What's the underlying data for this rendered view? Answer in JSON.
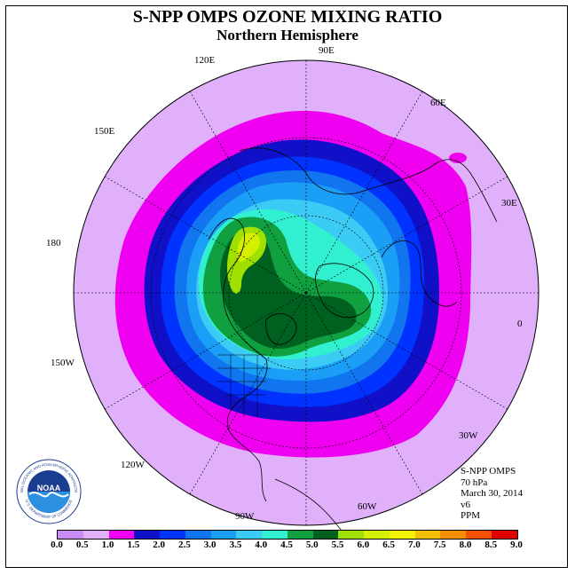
{
  "title": "S-NPP OMPS OZONE MIXING RATIO",
  "subtitle": "Northern Hemisphere",
  "longitude_labels": {
    "lon_90e": "90E",
    "lon_60e": "60E",
    "lon_30e": "30E",
    "lon_0": "0",
    "lon_30w": "30W",
    "lon_60w": "60W",
    "lon_90w": "90W",
    "lon_120w": "120W",
    "lon_150w": "150W",
    "lon_180": "180",
    "lon_150e": "150E",
    "lon_120e": "120E"
  },
  "info": {
    "instrument": "S-NPP OMPS",
    "level": "70 hPa",
    "date": "March 30, 2014",
    "version": "v6",
    "units": "PPM"
  },
  "colorbar": {
    "labels": [
      "0.0",
      "0.5",
      "1.0",
      "1.5",
      "2.0",
      "2.5",
      "3.0",
      "3.5",
      "4.0",
      "4.5",
      "5.0",
      "5.5",
      "6.0",
      "6.5",
      "7.0",
      "7.5",
      "8.0",
      "8.5",
      "9.0"
    ],
    "colors": [
      "#c98cf5",
      "#e0b0fb",
      "#f000f0",
      "#1010c8",
      "#0033ff",
      "#1175f0",
      "#1b9ef6",
      "#3ccbf5",
      "#30f0d0",
      "#10a040",
      "#006020",
      "#a0e000",
      "#d4f000",
      "#f4f400",
      "#f4c000",
      "#f49000",
      "#f45000",
      "#e00000",
      "#8b5a3c"
    ]
  },
  "logo": {
    "text": "NOAA",
    "ring_text_top": "NATIONAL OCEANIC AND ATMOSPHERIC ADMINISTRATION",
    "ring_text_bottom": "U.S. DEPARTMENT OF COMMERCE"
  }
}
